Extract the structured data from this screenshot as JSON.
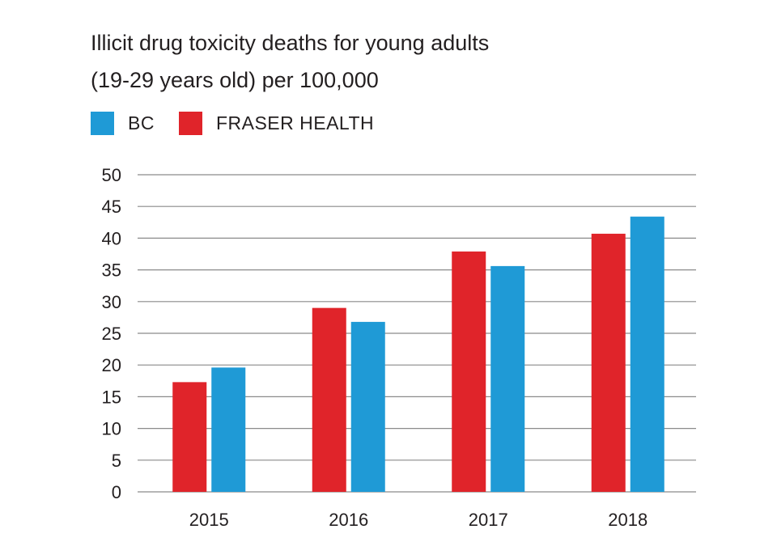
{
  "chart_data": {
    "type": "bar",
    "title_lines": [
      "Illicit drug toxicity deaths for young adults",
      "(19-29 years old) per 100,000"
    ],
    "xlabel": "",
    "ylabel": "",
    "categories": [
      "2015",
      "2016",
      "2017",
      "2018"
    ],
    "series": [
      {
        "name": "BC",
        "color": "#1f9ad6",
        "values": [
          19.6,
          26.8,
          35.6,
          43.4
        ]
      },
      {
        "name": "FRASER HEALTH",
        "color": "#e0242a",
        "values": [
          17.3,
          29.0,
          37.9,
          40.7
        ]
      }
    ],
    "bar_order": [
      "FRASER HEALTH",
      "BC"
    ],
    "ylim": [
      0,
      50
    ],
    "yticks": [
      "0",
      "5",
      "10",
      "15",
      "20",
      "25",
      "30",
      "35",
      "40",
      "45",
      "50"
    ],
    "grid": true,
    "legend_position": "top-left"
  }
}
